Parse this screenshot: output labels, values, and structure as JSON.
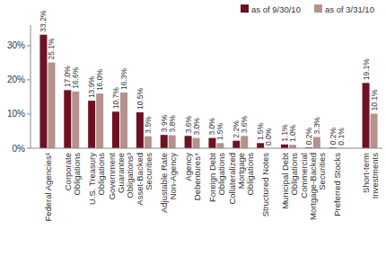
{
  "chart_data": {
    "type": "bar",
    "categories": [
      "Federal Agencies¹",
      "Corporate Obligations",
      "U.S. Treasury Obligations",
      "Government Guarantee Obligations³",
      "Asset-Backed Securities",
      "Adjustable Rate Non-Agency",
      "Agency Debentures⁴",
      "Foreign Debt Obligations",
      "Collateralized Mortgage Obligations",
      "Structured Notes",
      "Municipal Debt Obligations",
      "Commercial Mortgage-Backed Securities",
      "Preferred Stocks",
      "Short-term Investments"
    ],
    "series": [
      {
        "name": "as of 9/30/10",
        "color": "#6d1223",
        "values": [
          33.2,
          17.0,
          13.9,
          10.7,
          10.5,
          3.9,
          3.6,
          3.0,
          2.2,
          1.5,
          1.1,
          0.2,
          0.2,
          19.1
        ],
        "value_labels": [
          "33.2%",
          "17.0%",
          "13.9%",
          "10.7%",
          "10.5%",
          "3.9%",
          "3.6%",
          "3.0%",
          "2.2%",
          "1.5%",
          "1.1%",
          "0.2%",
          "0.2%",
          "19.1%"
        ]
      },
      {
        "name": "as of 3/31/10",
        "color": "#b4938c",
        "values": [
          25.1,
          16.6,
          16.0,
          16.3,
          3.5,
          3.8,
          3.0,
          1.5,
          3.6,
          0.0,
          1.0,
          3.3,
          0.1,
          10.1
        ],
        "value_labels": [
          "25.1%",
          "16.6%",
          "16.0%",
          "16.3%",
          "3.5%",
          "3.8%",
          "3.0%",
          "1.5%",
          "3.6%",
          "0.0%",
          "1.0%",
          "3.3%",
          "0.1%",
          "10.1%"
        ]
      }
    ],
    "ylim": [
      0,
      36
    ],
    "yticks": [
      {
        "value": 0,
        "label": "0%"
      },
      {
        "value": 10,
        "label": "10%"
      },
      {
        "value": 20,
        "label": "20%"
      },
      {
        "value": 30,
        "label": "30%"
      }
    ],
    "grid": false,
    "legend": "top-right",
    "data_labels": true
  }
}
